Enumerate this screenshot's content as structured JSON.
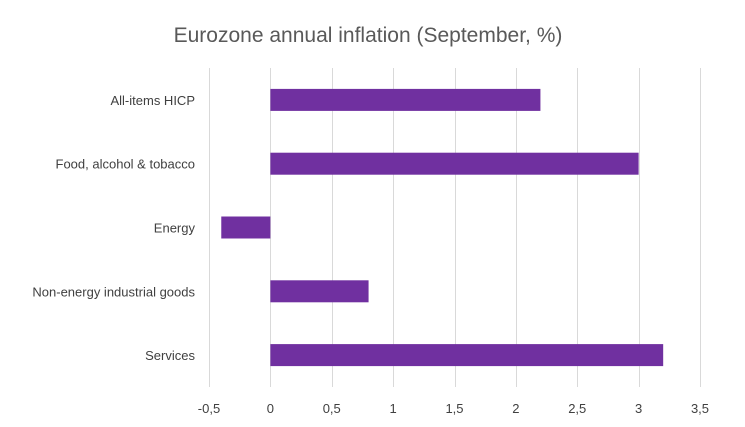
{
  "chart_data": {
    "type": "bar",
    "orientation": "horizontal",
    "title": "Eurozone annual inflation (September, %)",
    "categories": [
      "All-items HICP",
      "Food, alcohol & tobacco",
      "Energy",
      "Non-energy industrial goods",
      "Services"
    ],
    "values": [
      2.2,
      3.0,
      -0.4,
      0.8,
      3.2
    ],
    "xlim": [
      -0.5,
      3.5
    ],
    "xticks": [
      -0.5,
      0,
      0.5,
      1,
      1.5,
      2,
      2.5,
      3,
      3.5
    ],
    "xtick_labels": [
      "-0,5",
      "0",
      "0,5",
      "1",
      "1,5",
      "2",
      "2,5",
      "3",
      "3,5"
    ],
    "grid": true,
    "legend": "none",
    "bar_color": "#7030a0"
  }
}
